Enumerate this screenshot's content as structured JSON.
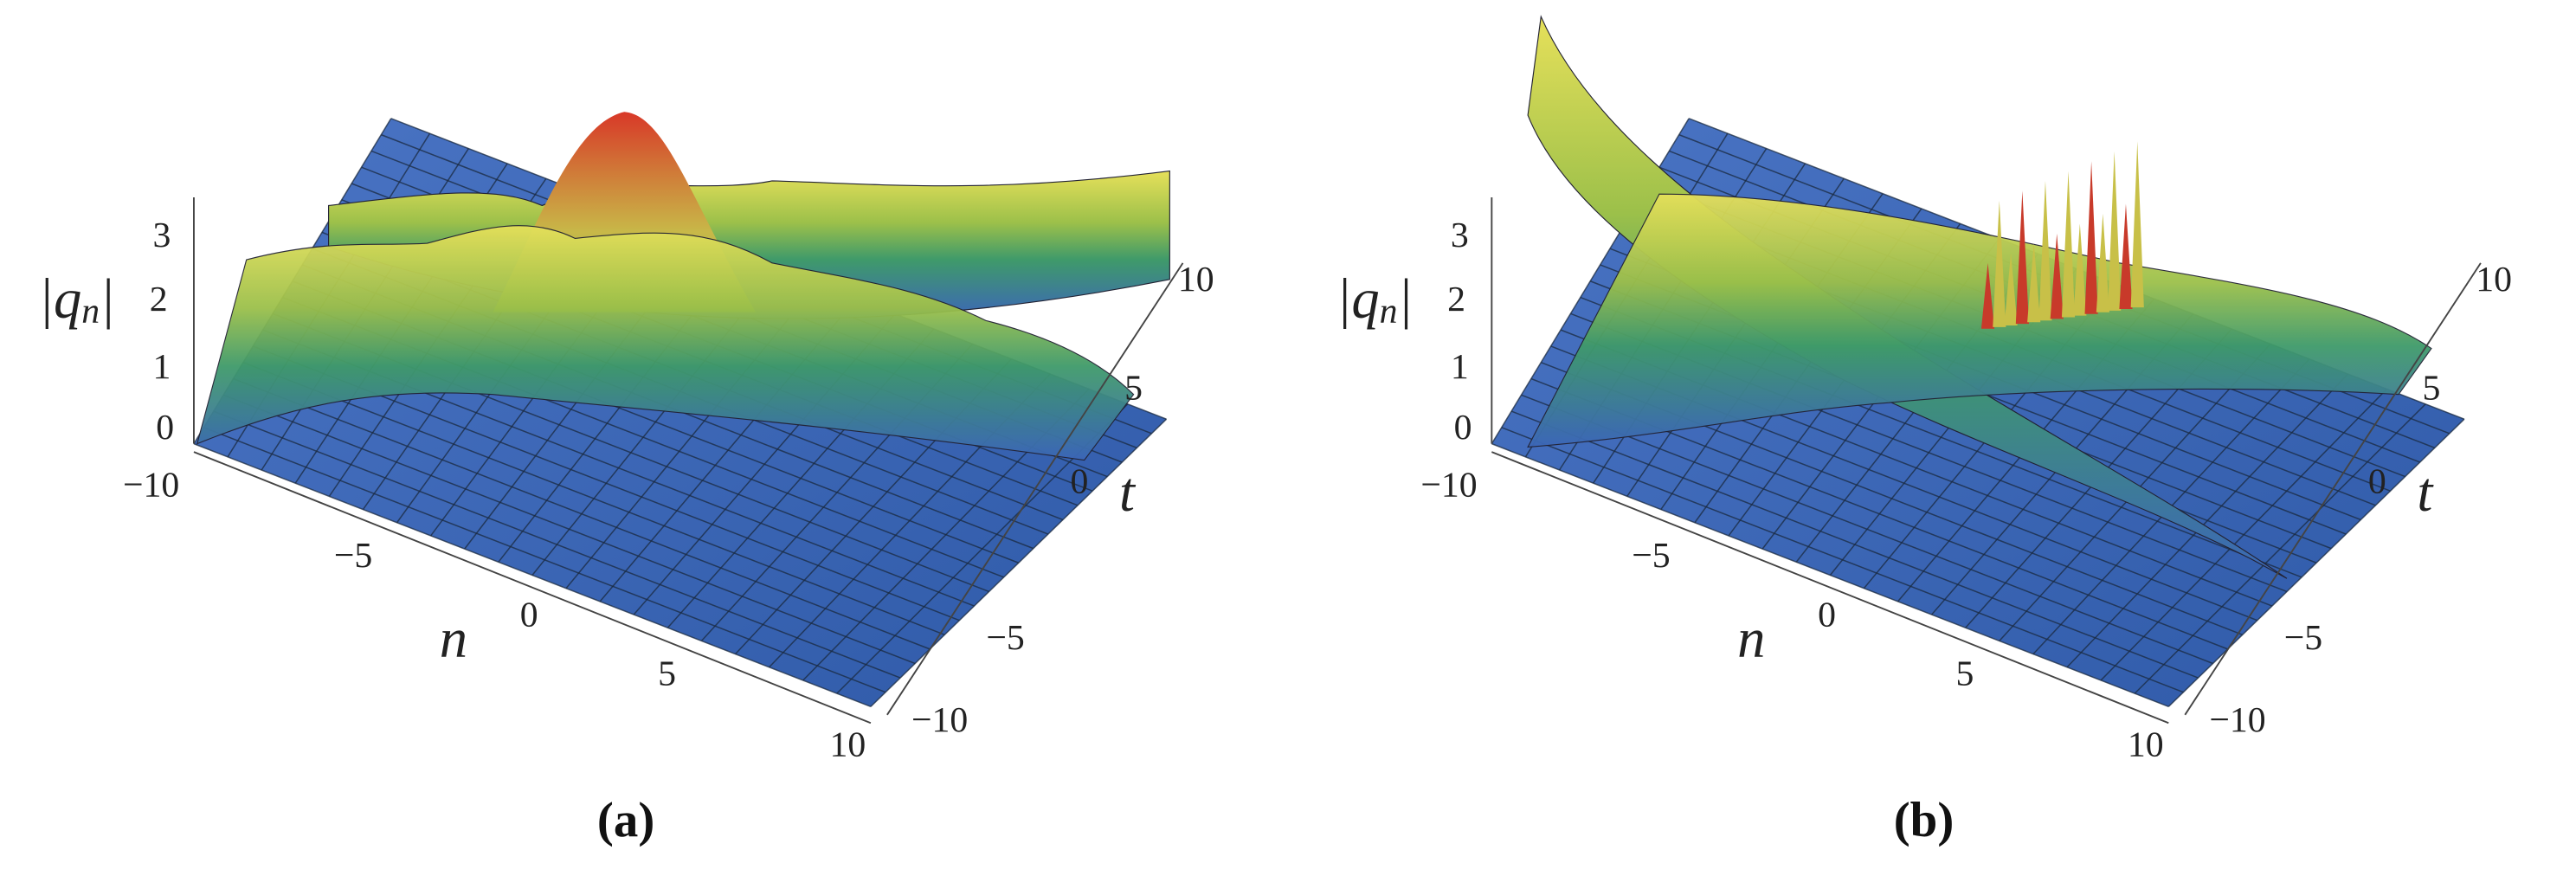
{
  "panels": [
    {
      "z_ticks": [
        "0",
        "1",
        "2",
        "3"
      ],
      "z_label": {
        "var": "q",
        "sub": "n"
      },
      "n_ticks": [
        "−10",
        "−5",
        "0",
        "5",
        "10"
      ],
      "n_label": "n",
      "t_ticks": [
        "−10",
        "−5",
        "0",
        "5",
        "10"
      ],
      "t_label": "t",
      "caption": "(a)"
    },
    {
      "z_ticks": [
        "0",
        "1",
        "2",
        "3"
      ],
      "z_label": {
        "var": "q",
        "sub": "n"
      },
      "n_ticks": [
        "−10",
        "−5",
        "0",
        "5",
        "10"
      ],
      "n_label": "n",
      "t_ticks": [
        "−10",
        "−5",
        "0",
        "5",
        "10"
      ],
      "t_label": "t",
      "caption": "(b)"
    }
  ]
}
